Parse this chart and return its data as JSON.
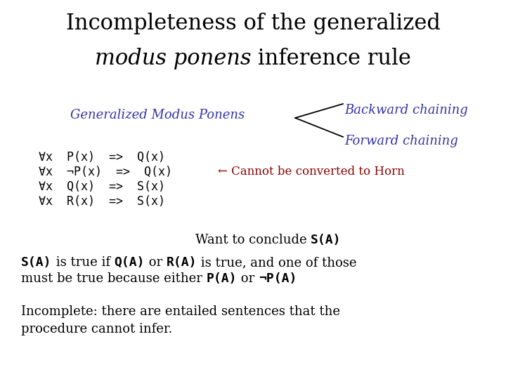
{
  "bg_color": "#ffffff",
  "title_color": "#000000",
  "label_color": "#3333aa",
  "formula_color": "#000000",
  "cannot_color": "#8b0000",
  "arrow_color": "#000000",
  "title_line1": "Incompleteness of the generalized",
  "title_line2_italic": "modus ponens",
  "title_line2_normal": " inference rule",
  "gmp_label": "Generalized Modus Ponens",
  "backward_label": "Backward chaining",
  "forward_label": "Forward chaining",
  "formula_lines": [
    "∀x  P(x)  =>  Q(x)",
    "∀x  ¬P(x)  =>  Q(x)",
    "∀x  Q(x)  =>  S(x)",
    "∀x  R(x)  =>  S(x)"
  ],
  "cannot_text": "← Cannot be converted to Horn",
  "conclude_normal": "Want to conclude ",
  "conclude_mono": "S(A)",
  "para1_seg1_mono": "S(A)",
  "para1_seg2_serif": " is true if ",
  "para1_seg3_mono": "Q(A)",
  "para1_seg4_serif": " or ",
  "para1_seg5_mono": "R(A)",
  "para1_seg6_serif": " is true, and one of those",
  "para2_seg1_serif": "must be true because either ",
  "para2_seg2_mono": "P(A)",
  "para2_seg3_serif": " or ",
  "para2_seg4_mono": "¬P(A)",
  "incomplete_line1": "Incomplete: there are entailed sentences that the",
  "incomplete_line2": "procedure cannot infer."
}
